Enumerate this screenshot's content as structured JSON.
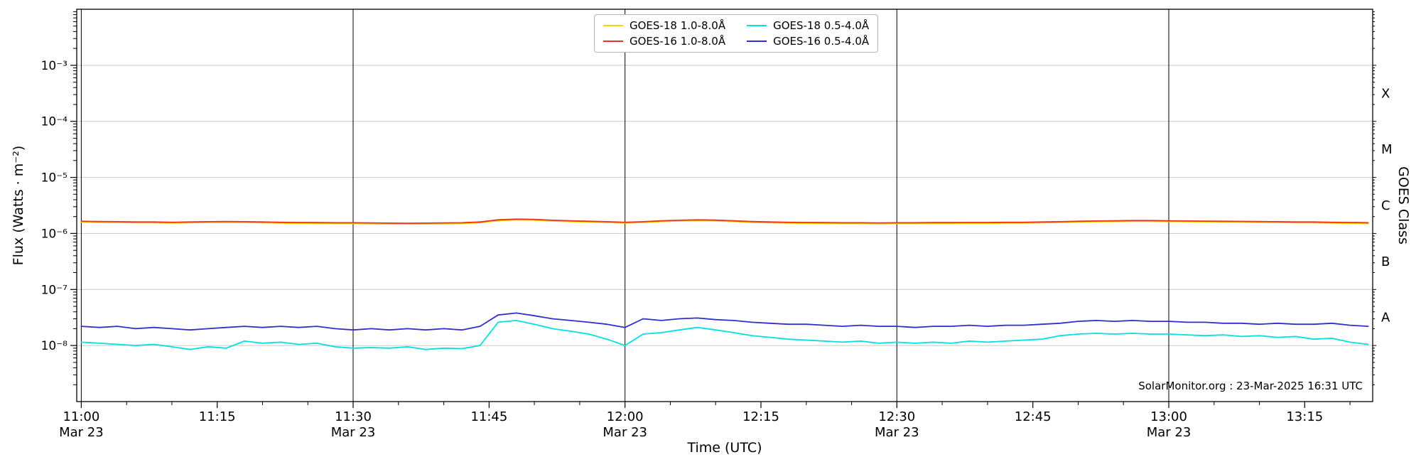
{
  "chart_data": {
    "type": "line",
    "title": "",
    "xlabel": "Time (UTC)",
    "ylabel": "Flux (Watts · m⁻²)",
    "y2label": "GOES Class",
    "annotation": "SolarMonitor.org : 23-Mar-2025 16:31 UTC",
    "grid": {
      "vertical_color": "#000000",
      "horizontal_color": "#c9c9c9"
    },
    "legend": {
      "position": "top-center",
      "columns": 2
    },
    "axes": {
      "x": {
        "min": -0.5,
        "max": 142.5,
        "unit": "minutes after 11:00 UTC on 2025-03-23",
        "minor_tick_step": 5,
        "gridlines": [
          0,
          30,
          60,
          90,
          120
        ],
        "major_ticks": [
          {
            "t": 0,
            "label": "11:00",
            "sub": "Mar 23"
          },
          {
            "t": 15,
            "label": "11:15"
          },
          {
            "t": 30,
            "label": "11:30",
            "sub": "Mar 23"
          },
          {
            "t": 45,
            "label": "11:45"
          },
          {
            "t": 60,
            "label": "12:00",
            "sub": "Mar 23"
          },
          {
            "t": 75,
            "label": "12:15"
          },
          {
            "t": 90,
            "label": "12:30",
            "sub": "Mar 23"
          },
          {
            "t": 105,
            "label": "12:45"
          },
          {
            "t": 120,
            "label": "13:00",
            "sub": "Mar 23"
          },
          {
            "t": 135,
            "label": "13:15"
          }
        ]
      },
      "y": {
        "scale": "log",
        "min": 1e-09,
        "max": 0.01,
        "gridlines": [
          0.001,
          0.0001,
          1e-05,
          1e-06,
          1e-07,
          1e-08
        ],
        "major_ticks": [
          {
            "value": 0.001,
            "label": "10⁻³"
          },
          {
            "value": 0.0001,
            "label": "10⁻⁴"
          },
          {
            "value": 1e-05,
            "label": "10⁻⁵"
          },
          {
            "value": 1e-06,
            "label": "10⁻⁶"
          },
          {
            "value": 1e-07,
            "label": "10⁻⁷"
          },
          {
            "value": 1e-08,
            "label": "10⁻⁸"
          }
        ]
      },
      "y2": {
        "classes": [
          {
            "label": "X",
            "value": 0.000316
          },
          {
            "label": "M",
            "value": 3.16e-05
          },
          {
            "label": "C",
            "value": 3.16e-06
          },
          {
            "label": "B",
            "value": 3.16e-07
          },
          {
            "label": "A",
            "value": 3.16e-08
          }
        ]
      }
    },
    "x_minutes": [
      0,
      2,
      4,
      6,
      8,
      10,
      12,
      14,
      16,
      18,
      20,
      22,
      24,
      26,
      28,
      30,
      32,
      34,
      36,
      38,
      40,
      42,
      44,
      46,
      48,
      50,
      52,
      54,
      56,
      58,
      60,
      62,
      64,
      66,
      68,
      70,
      72,
      74,
      76,
      78,
      80,
      82,
      84,
      86,
      88,
      90,
      92,
      94,
      96,
      98,
      100,
      102,
      104,
      106,
      108,
      110,
      112,
      114,
      116,
      118,
      120,
      122,
      124,
      126,
      128,
      130,
      132,
      134,
      136,
      138,
      140,
      142
    ],
    "series": [
      {
        "name": "GOES-18 1.0-8.0Å",
        "color": "#ffd000",
        "values": [
          1.6e-06,
          1.58e-06,
          1.57e-06,
          1.55e-06,
          1.55e-06,
          1.53e-06,
          1.55e-06,
          1.57e-06,
          1.58e-06,
          1.57e-06,
          1.55e-06,
          1.53e-06,
          1.52e-06,
          1.51e-06,
          1.5e-06,
          1.5e-06,
          1.49e-06,
          1.48e-06,
          1.47e-06,
          1.48e-06,
          1.49e-06,
          1.5e-06,
          1.55e-06,
          1.7e-06,
          1.75e-06,
          1.73e-06,
          1.67e-06,
          1.63e-06,
          1.6e-06,
          1.57e-06,
          1.53e-06,
          1.57e-06,
          1.63e-06,
          1.67e-06,
          1.7e-06,
          1.68e-06,
          1.63e-06,
          1.58e-06,
          1.55e-06,
          1.53e-06,
          1.52e-06,
          1.51e-06,
          1.5e-06,
          1.5e-06,
          1.49e-06,
          1.5e-06,
          1.5e-06,
          1.51e-06,
          1.51e-06,
          1.52e-06,
          1.52e-06,
          1.53e-06,
          1.53e-06,
          1.55e-06,
          1.57e-06,
          1.6e-06,
          1.62e-06,
          1.63e-06,
          1.65e-06,
          1.65e-06,
          1.63e-06,
          1.62e-06,
          1.61e-06,
          1.6e-06,
          1.59e-06,
          1.58e-06,
          1.57e-06,
          1.55e-06,
          1.55e-06,
          1.53e-06,
          1.52e-06,
          1.5e-06
        ]
      },
      {
        "name": "GOES-16 1.0-8.0Å",
        "color": "#e8371f",
        "values": [
          1.65e-06,
          1.63e-06,
          1.62e-06,
          1.6e-06,
          1.6e-06,
          1.58e-06,
          1.6e-06,
          1.62e-06,
          1.63e-06,
          1.62e-06,
          1.6e-06,
          1.58e-06,
          1.57e-06,
          1.56e-06,
          1.55e-06,
          1.55e-06,
          1.54e-06,
          1.53e-06,
          1.52e-06,
          1.53e-06,
          1.54e-06,
          1.55e-06,
          1.6e-06,
          1.75e-06,
          1.8e-06,
          1.78e-06,
          1.72e-06,
          1.68e-06,
          1.65e-06,
          1.62e-06,
          1.58e-06,
          1.62e-06,
          1.68e-06,
          1.72e-06,
          1.75e-06,
          1.73e-06,
          1.68e-06,
          1.63e-06,
          1.6e-06,
          1.58e-06,
          1.57e-06,
          1.56e-06,
          1.55e-06,
          1.55e-06,
          1.54e-06,
          1.55e-06,
          1.55e-06,
          1.56e-06,
          1.56e-06,
          1.57e-06,
          1.57e-06,
          1.58e-06,
          1.58e-06,
          1.6e-06,
          1.62e-06,
          1.65e-06,
          1.67e-06,
          1.68e-06,
          1.7e-06,
          1.7e-06,
          1.68e-06,
          1.67e-06,
          1.66e-06,
          1.65e-06,
          1.64e-06,
          1.63e-06,
          1.62e-06,
          1.6e-06,
          1.6e-06,
          1.58e-06,
          1.57e-06,
          1.55e-06
        ]
      },
      {
        "name": "GOES-18 0.5-4.0Å",
        "color": "#00e0e0",
        "values": [
          1.15e-08,
          1.1e-08,
          1.05e-08,
          1e-08,
          1.05e-08,
          9.5e-09,
          8.5e-09,
          9.5e-09,
          9e-09,
          1.2e-08,
          1.1e-08,
          1.15e-08,
          1.05e-08,
          1.1e-08,
          9.5e-09,
          9e-09,
          9.2e-09,
          9e-09,
          9.5e-09,
          8.5e-09,
          9e-09,
          8.8e-09,
          1e-08,
          2.6e-08,
          2.8e-08,
          2.4e-08,
          2e-08,
          1.8e-08,
          1.6e-08,
          1.3e-08,
          1e-08,
          1.6e-08,
          1.7e-08,
          1.9e-08,
          2.1e-08,
          1.9e-08,
          1.7e-08,
          1.5e-08,
          1.4e-08,
          1.3e-08,
          1.25e-08,
          1.2e-08,
          1.15e-08,
          1.2e-08,
          1.1e-08,
          1.15e-08,
          1.1e-08,
          1.15e-08,
          1.1e-08,
          1.2e-08,
          1.15e-08,
          1.2e-08,
          1.25e-08,
          1.3e-08,
          1.5e-08,
          1.6e-08,
          1.65e-08,
          1.6e-08,
          1.65e-08,
          1.6e-08,
          1.6e-08,
          1.55e-08,
          1.5e-08,
          1.55e-08,
          1.45e-08,
          1.5e-08,
          1.4e-08,
          1.45e-08,
          1.3e-08,
          1.35e-08,
          1.15e-08,
          1.05e-08
        ]
      },
      {
        "name": "GOES-16 0.5-4.0Å",
        "color": "#2f2fd0",
        "values": [
          2.2e-08,
          2.1e-08,
          2.2e-08,
          2e-08,
          2.1e-08,
          2e-08,
          1.9e-08,
          2e-08,
          2.1e-08,
          2.2e-08,
          2.1e-08,
          2.2e-08,
          2.1e-08,
          2.2e-08,
          2e-08,
          1.9e-08,
          2e-08,
          1.9e-08,
          2e-08,
          1.9e-08,
          2e-08,
          1.9e-08,
          2.2e-08,
          3.5e-08,
          3.8e-08,
          3.4e-08,
          3e-08,
          2.8e-08,
          2.6e-08,
          2.4e-08,
          2.1e-08,
          3e-08,
          2.8e-08,
          3e-08,
          3.1e-08,
          2.9e-08,
          2.8e-08,
          2.6e-08,
          2.5e-08,
          2.4e-08,
          2.4e-08,
          2.3e-08,
          2.2e-08,
          2.3e-08,
          2.2e-08,
          2.2e-08,
          2.1e-08,
          2.2e-08,
          2.2e-08,
          2.3e-08,
          2.2e-08,
          2.3e-08,
          2.3e-08,
          2.4e-08,
          2.5e-08,
          2.7e-08,
          2.8e-08,
          2.7e-08,
          2.8e-08,
          2.7e-08,
          2.7e-08,
          2.6e-08,
          2.6e-08,
          2.5e-08,
          2.5e-08,
          2.4e-08,
          2.5e-08,
          2.4e-08,
          2.4e-08,
          2.5e-08,
          2.3e-08,
          2.2e-08
        ]
      }
    ]
  }
}
